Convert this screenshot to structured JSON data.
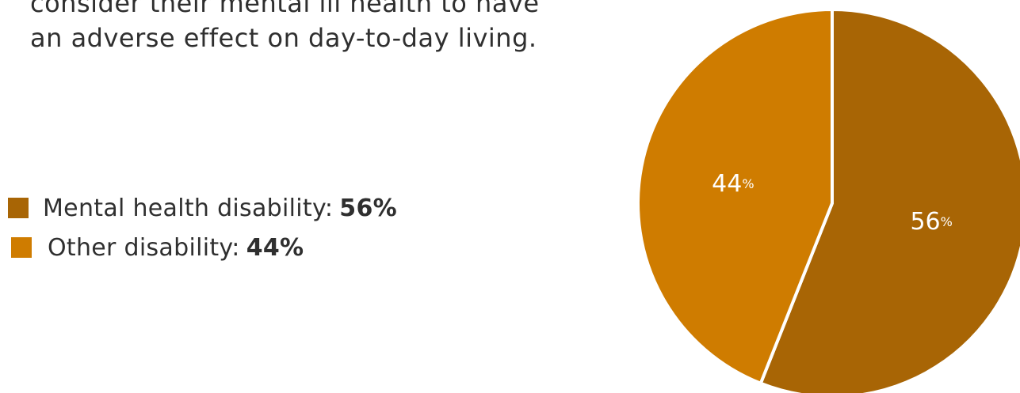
{
  "intro": {
    "line1": "consider their mental ill health to have",
    "line2": "an adverse effect on day-to-day living."
  },
  "legend": [
    {
      "label": "Mental health disability:",
      "value": "56%"
    },
    {
      "label": "Other disability:",
      "value": "44%"
    }
  ],
  "chart_data": {
    "type": "pie",
    "categories": [
      "Mental health disability",
      "Other disability"
    ],
    "values": [
      56,
      44
    ],
    "colors": [
      "#a86505",
      "#cf7c00"
    ],
    "data_labels": [
      {
        "number": "56",
        "unit": "%"
      },
      {
        "number": "44",
        "unit": "%"
      }
    ],
    "start": "top",
    "direction": "clockwise"
  }
}
